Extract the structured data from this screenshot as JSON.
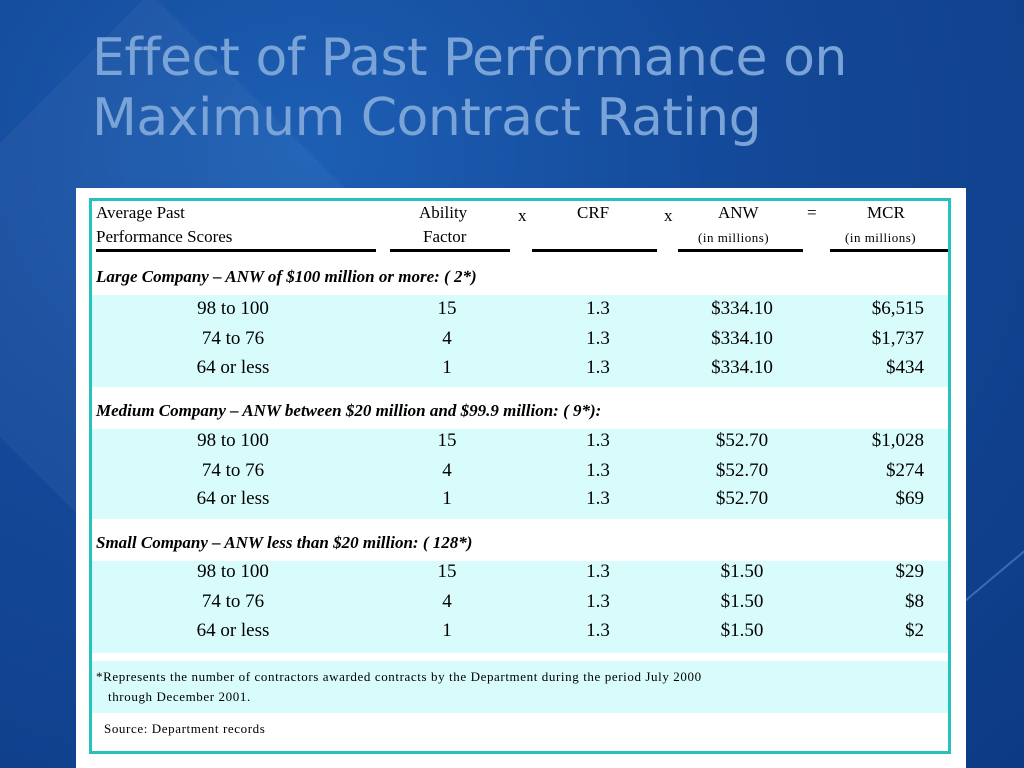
{
  "slide": {
    "title_line1": "Effect of Past Performance on",
    "title_line2": "Maximum Contract Rating"
  },
  "table": {
    "headers": {
      "scores_line1": "Average Past",
      "scores_line2": "Performance Scores",
      "ability_line1": "Ability",
      "ability_line2": "Factor",
      "times1": "x",
      "crf": "CRF",
      "times2": "x",
      "anw": "ANW",
      "anw_unit": "(in millions)",
      "equals": "=",
      "mcr": "MCR",
      "mcr_unit": "(in millions)"
    },
    "sections": [
      {
        "title": "Large Company – ANW of $100 million or more:   ( 2*)",
        "rows": [
          {
            "score": "98 to 100",
            "ability": "15",
            "crf": "1.3",
            "anw": "$334.10",
            "mcr": "$6,515"
          },
          {
            "score": "74 to 76",
            "ability": "4",
            "crf": "1.3",
            "anw": "$334.10",
            "mcr": "$1,737"
          },
          {
            "score": "64 or less",
            "ability": "1",
            "crf": "1.3",
            "anw": "$334.10",
            "mcr": "$434"
          }
        ]
      },
      {
        "title": "Medium Company – ANW between $20 million and $99.9 million:   ( 9*):",
        "rows": [
          {
            "score": "98 to 100",
            "ability": "15",
            "crf": "1.3",
            "anw": "$52.70",
            "mcr": "$1,028"
          },
          {
            "score": "74 to 76",
            "ability": "4",
            "crf": "1.3",
            "anw": "$52.70",
            "mcr": "$274"
          },
          {
            "score": "64 or less",
            "ability": "1",
            "crf": "1.3",
            "anw": "$52.70",
            "mcr": "$69"
          }
        ]
      },
      {
        "title": "Small Company – ANW less than $20 million:   ( 128*)",
        "rows": [
          {
            "score": "98 to 100",
            "ability": "15",
            "crf": "1.3",
            "anw": "$1.50",
            "mcr": "$29"
          },
          {
            "score": "74 to 76",
            "ability": "4",
            "crf": "1.3",
            "anw": "$1.50",
            "mcr": "$8"
          },
          {
            "score": "64 or less",
            "ability": "1",
            "crf": "1.3",
            "anw": "$1.50",
            "mcr": "$2"
          }
        ]
      }
    ],
    "footnote_line1": "*Represents the number of contractors awarded contracts by the Department during the period July 2000",
    "footnote_line2": "through December 2001.",
    "source": "Source: Department records"
  }
}
